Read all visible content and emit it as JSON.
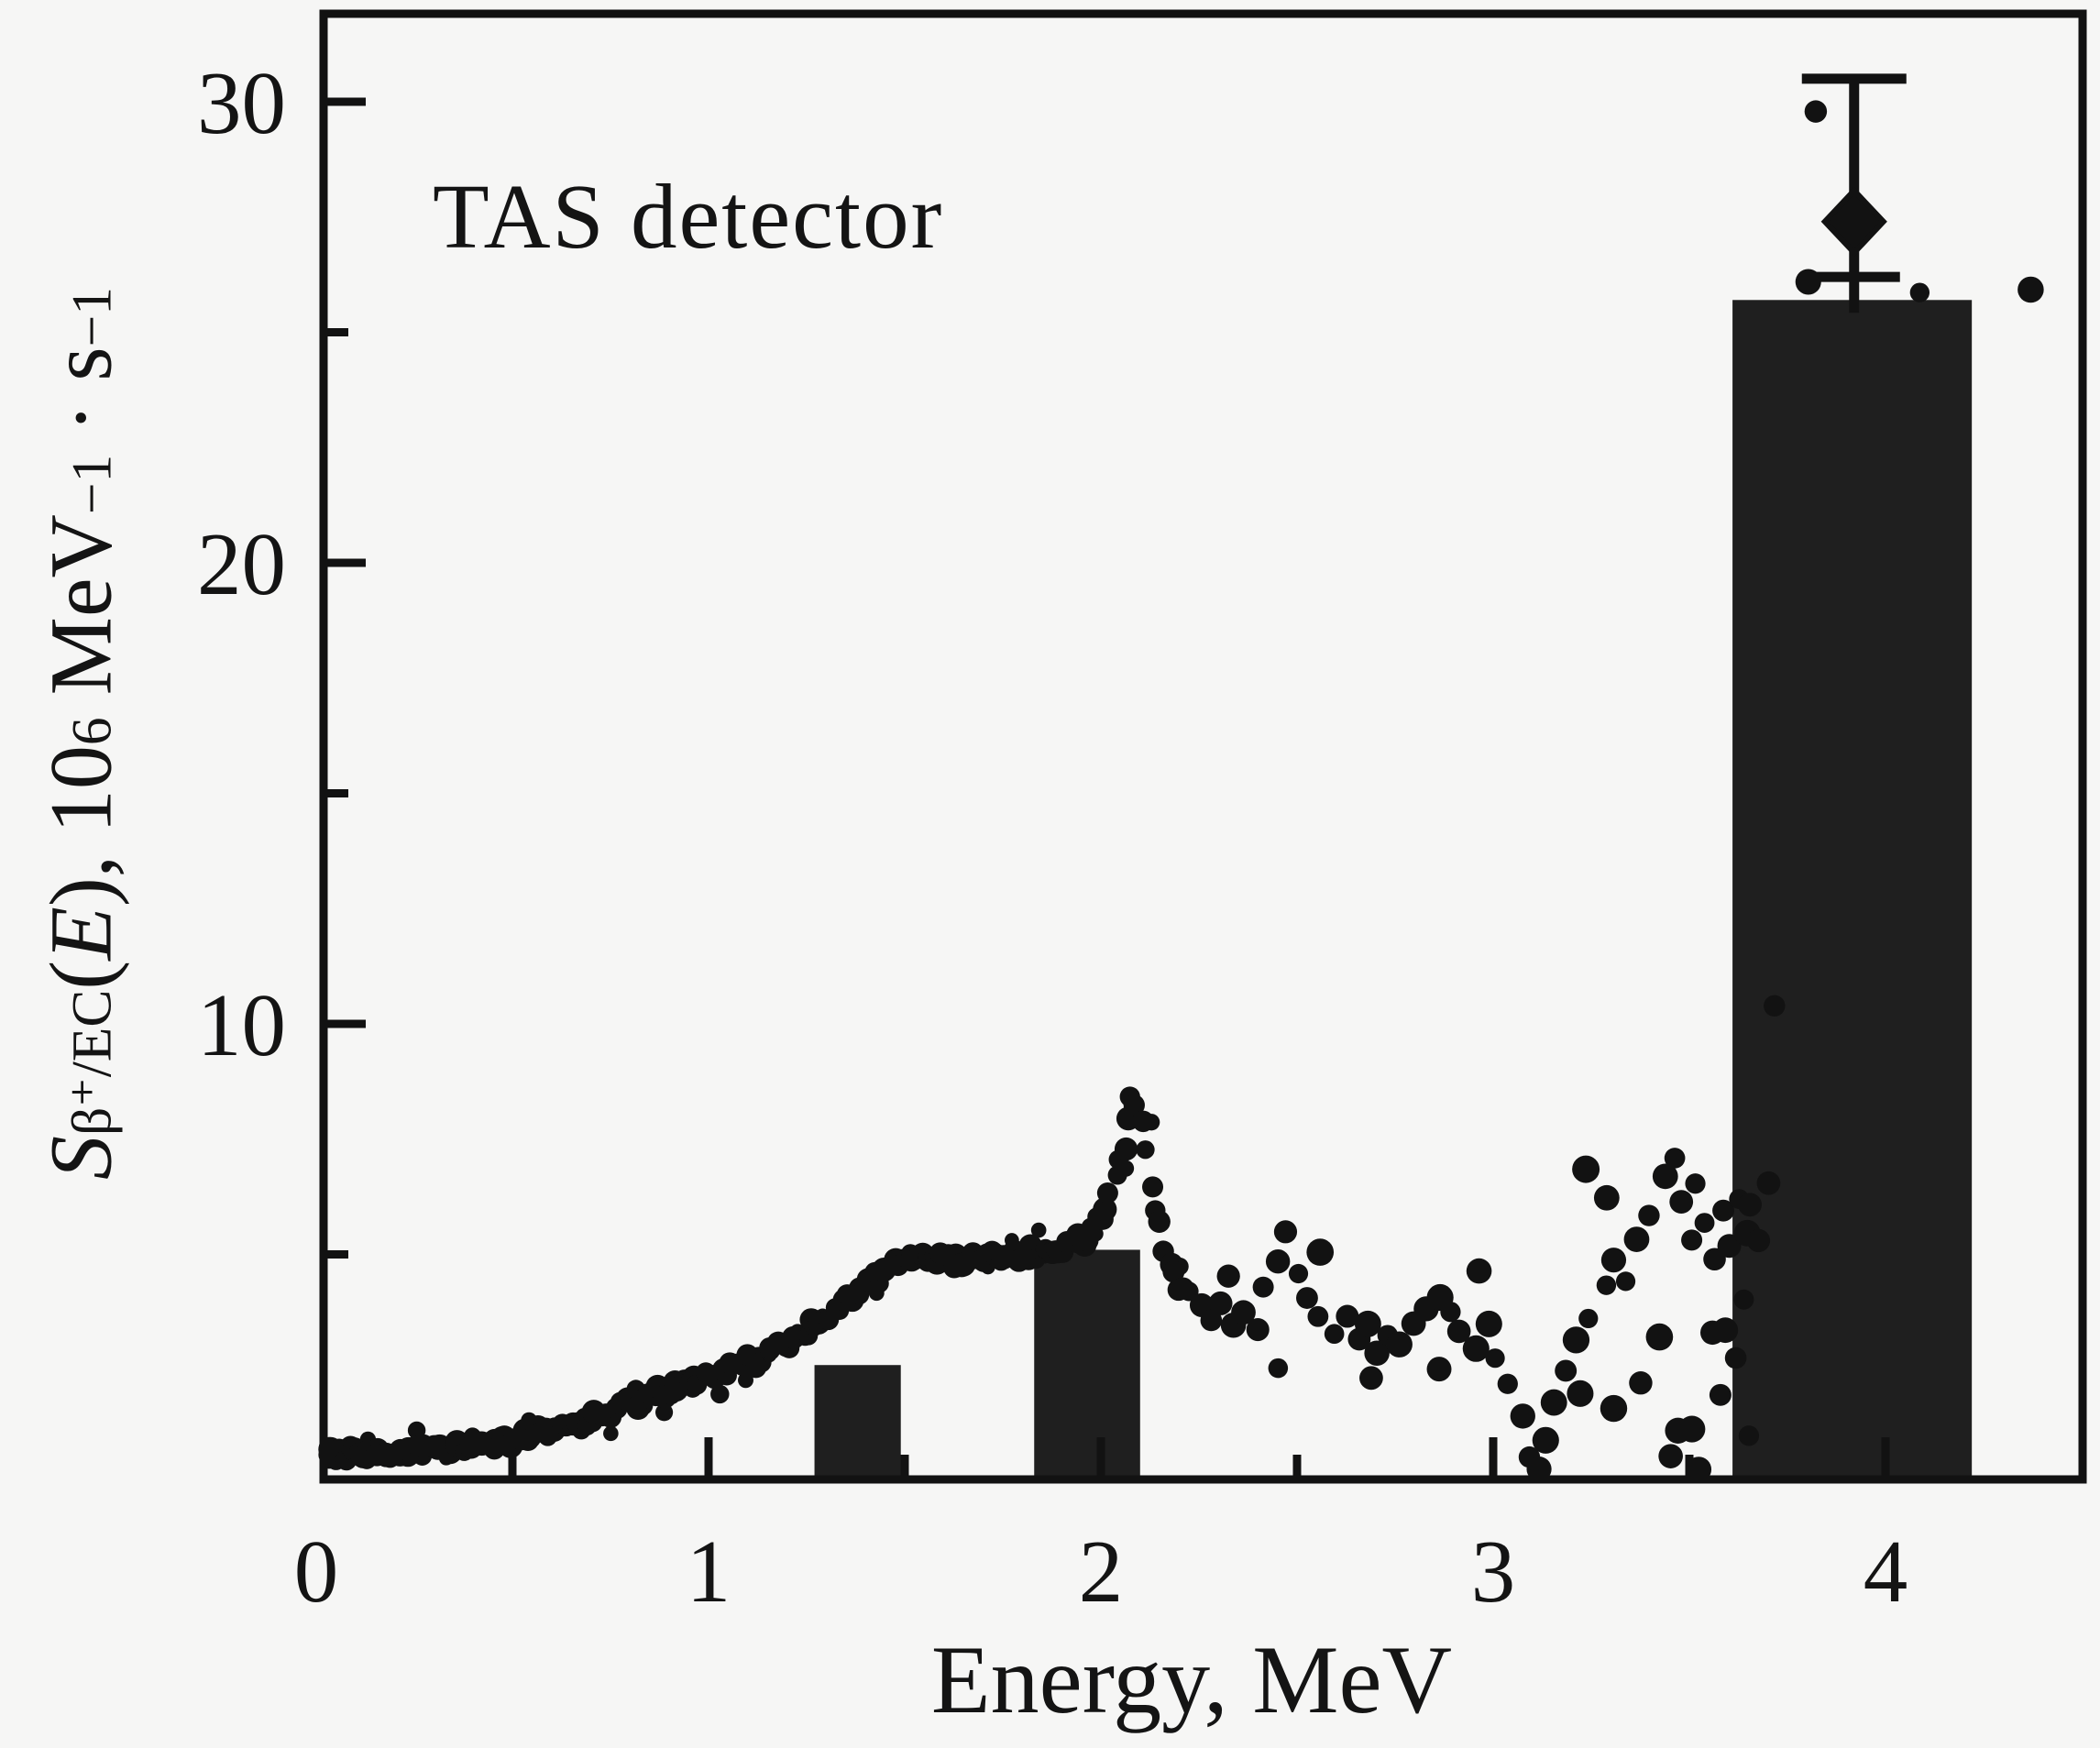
{
  "figure": {
    "annotation": "TAS detector",
    "x_axis": {
      "label": "Energy, MeV",
      "ticks": [
        0,
        1,
        2,
        3,
        4
      ],
      "minor_ticks": [
        0.5,
        1.5,
        2.5,
        3.5
      ],
      "range": [
        0,
        4.5
      ]
    },
    "y_axis": {
      "label_S": "S",
      "label_sub": "β⁺/EC",
      "label_open": "(",
      "label_E": "E",
      "label_mid": "), 10",
      "label_exp6": "6",
      "label_mev": " MeV",
      "label_expm1a": "−1",
      "label_dot_s": " · s",
      "label_expm1b": "−1",
      "ticks": [
        10,
        20,
        30
      ],
      "minor_ticks": [
        5,
        15,
        25
      ],
      "range": [
        0,
        31.9
      ]
    },
    "colors": {
      "background": "#f6f6f5",
      "ink": "#121212",
      "bar_fill": "#1f1f1f"
    }
  },
  "chart_data": {
    "type": "scatter",
    "title": "TAS detector",
    "xlabel": "Energy, MeV",
    "ylabel": "S_beta+/EC(E), 10^6 MeV^-1 s^-1",
    "xlim": [
      0,
      4.5
    ],
    "ylim": [
      0,
      31.9
    ],
    "grid": false,
    "series": [
      {
        "name": "measured-strength-curve",
        "style": "dense-dotted-line",
        "points": [
          [
            0.0,
            0.7
          ],
          [
            0.08,
            0.68
          ],
          [
            0.16,
            0.7
          ],
          [
            0.24,
            0.74
          ],
          [
            0.32,
            0.78
          ],
          [
            0.4,
            0.85
          ],
          [
            0.48,
            0.95
          ],
          [
            0.56,
            1.1
          ],
          [
            0.64,
            1.3
          ],
          [
            0.72,
            1.5
          ],
          [
            0.8,
            1.75
          ],
          [
            0.88,
            2.0
          ],
          [
            0.96,
            2.2
          ],
          [
            1.04,
            2.5
          ],
          [
            1.12,
            2.7
          ],
          [
            1.2,
            3.05
          ],
          [
            1.28,
            3.5
          ],
          [
            1.36,
            4.1
          ],
          [
            1.44,
            4.55
          ],
          [
            1.5,
            4.85
          ],
          [
            1.56,
            5.0
          ],
          [
            1.62,
            4.85
          ],
          [
            1.68,
            5.0
          ],
          [
            1.74,
            4.95
          ],
          [
            1.8,
            5.0
          ],
          [
            1.86,
            5.1
          ],
          [
            1.92,
            5.15
          ],
          [
            1.97,
            5.4
          ],
          [
            2.01,
            5.95
          ],
          [
            2.04,
            6.7
          ],
          [
            2.06,
            7.4
          ],
          [
            2.08,
            8.5
          ],
          [
            2.1,
            8.0
          ],
          [
            2.12,
            7.0
          ],
          [
            2.14,
            6.0
          ],
          [
            2.16,
            5.2
          ],
          [
            2.18,
            4.7
          ],
          [
            2.2,
            4.3
          ],
          [
            2.22,
            4.05
          ]
        ]
      },
      {
        "name": "measured-strength-scatter",
        "style": "scatter-dots",
        "points": [
          [
            2.25,
            3.8
          ],
          [
            2.28,
            3.6
          ],
          [
            2.31,
            3.9
          ],
          [
            2.33,
            4.5
          ],
          [
            2.34,
            3.5
          ],
          [
            2.37,
            3.8
          ],
          [
            2.4,
            3.4
          ],
          [
            2.42,
            4.3
          ],
          [
            2.45,
            4.9
          ],
          [
            2.46,
            2.6
          ],
          [
            2.47,
            5.4
          ],
          [
            2.5,
            4.6
          ],
          [
            2.53,
            4.0
          ],
          [
            2.55,
            5.0
          ],
          [
            2.56,
            3.7
          ],
          [
            2.59,
            3.3
          ],
          [
            2.62,
            3.6
          ],
          [
            2.65,
            3.1
          ],
          [
            2.68,
            3.4
          ],
          [
            2.68,
            2.3
          ],
          [
            2.71,
            2.9
          ],
          [
            2.74,
            3.3
          ],
          [
            2.77,
            3.0
          ],
          [
            2.8,
            3.4
          ],
          [
            2.83,
            3.8
          ],
          [
            2.86,
            4.1
          ],
          [
            2.86,
            2.5
          ],
          [
            2.89,
            3.7
          ],
          [
            2.92,
            3.3
          ],
          [
            2.95,
            3.0
          ],
          [
            2.96,
            4.6
          ],
          [
            2.98,
            3.4
          ],
          [
            3.01,
            2.8
          ],
          [
            3.04,
            2.2
          ],
          [
            3.07,
            1.4
          ],
          [
            3.09,
            0.7
          ],
          [
            3.11,
            0.3
          ],
          [
            3.13,
            0.9
          ],
          [
            3.16,
            1.7
          ],
          [
            3.19,
            2.5
          ],
          [
            3.22,
            3.1
          ],
          [
            3.23,
            2.0
          ],
          [
            3.24,
            6.9
          ],
          [
            3.25,
            3.7
          ],
          [
            3.28,
            4.3
          ],
          [
            3.29,
            6.2
          ],
          [
            3.3,
            1.7
          ],
          [
            3.31,
            4.9
          ],
          [
            3.34,
            4.4
          ],
          [
            3.37,
            5.3
          ],
          [
            3.38,
            2.3
          ],
          [
            3.4,
            5.9
          ],
          [
            3.43,
            6.6
          ],
          [
            3.43,
            3.2
          ],
          [
            3.45,
            0.6
          ],
          [
            3.46,
            7.0
          ],
          [
            3.47,
            1.1
          ],
          [
            3.48,
            6.1
          ],
          [
            3.5,
            5.3
          ],
          [
            3.5,
            1.3
          ],
          [
            3.52,
            6.5
          ],
          [
            3.52,
            0.3
          ],
          [
            3.54,
            5.7
          ],
          [
            3.55,
            3.4
          ],
          [
            3.56,
            4.8
          ],
          [
            3.57,
            1.9
          ],
          [
            3.58,
            5.9
          ],
          [
            3.59,
            3.3
          ],
          [
            3.6,
            5.1
          ],
          [
            3.61,
            2.8
          ],
          [
            3.62,
            6.3
          ],
          [
            3.63,
            4.1
          ],
          [
            3.64,
            5.5
          ],
          [
            3.65,
            1.1
          ],
          [
            3.66,
            6.0
          ],
          [
            3.68,
            5.2
          ],
          [
            3.7,
            6.6
          ],
          [
            3.72,
            10.4
          ],
          [
            3.82,
            29.7
          ],
          [
            3.8,
            26.1
          ],
          [
            4.09,
            25.9
          ],
          [
            4.37,
            26.0
          ]
        ]
      }
    ],
    "bars": [
      {
        "x_from": 1.27,
        "x_to": 1.49,
        "height": 2.6
      },
      {
        "x_from": 1.83,
        "x_to": 2.1,
        "height": 5.1
      },
      {
        "x_from": 3.61,
        "x_to": 4.22,
        "height": 25.7
      }
    ],
    "error_point": {
      "x": 3.92,
      "y": 27.4,
      "y_top": 30.5,
      "y_bottom": 26.2,
      "marker": "filled-diamond"
    }
  }
}
